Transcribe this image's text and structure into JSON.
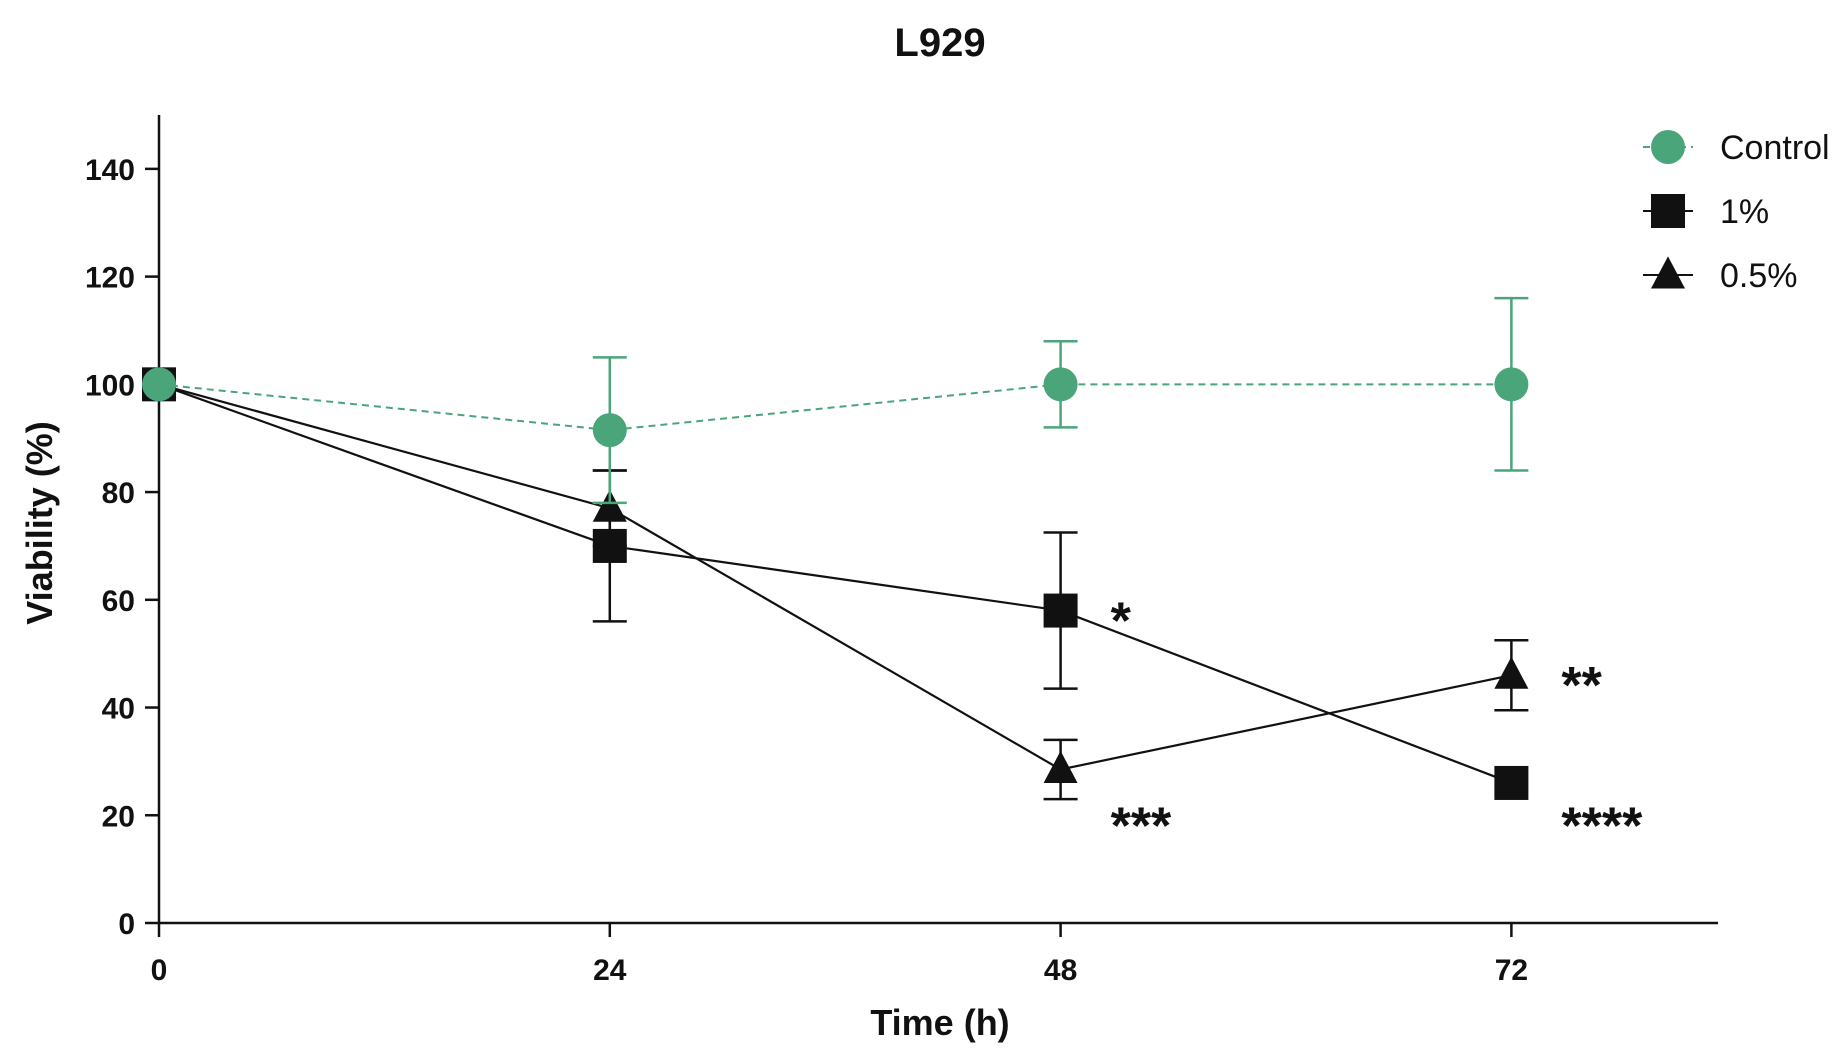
{
  "chart_data": {
    "type": "line",
    "title": "L929",
    "xlabel": "Time (h)",
    "ylabel": "Viability (%)",
    "xlim": [
      0,
      83
    ],
    "ylim": [
      0,
      150
    ],
    "x_ticks": [
      0,
      24,
      48,
      72
    ],
    "y_ticks": [
      0,
      20,
      40,
      60,
      80,
      100,
      120,
      140
    ],
    "legend_position": "top-right",
    "grid": false,
    "series": [
      {
        "name": "Control",
        "marker": "circle",
        "line_style": "dashed",
        "color": "#4aa57a",
        "x": [
          0,
          24,
          48,
          72
        ],
        "y": [
          100,
          91.5,
          100,
          100
        ],
        "error": [
          0,
          13.5,
          8,
          16
        ]
      },
      {
        "name": "1%",
        "marker": "square",
        "line_style": "solid",
        "color": "#111111",
        "x": [
          0,
          24,
          48,
          72
        ],
        "y": [
          100,
          70,
          58,
          26
        ],
        "error": [
          0,
          14,
          14.5,
          0
        ]
      },
      {
        "name": "0.5%",
        "marker": "triangle",
        "line_style": "solid",
        "color": "#111111",
        "x": [
          0,
          24,
          48,
          72
        ],
        "y": [
          100,
          77,
          28.5,
          46
        ],
        "error": [
          0,
          7,
          5.5,
          6.5
        ]
      }
    ],
    "annotations": [
      {
        "text": "*",
        "x": 48,
        "y": 58
      },
      {
        "text": "***",
        "x": 48,
        "y": 20
      },
      {
        "text": "**",
        "x": 72,
        "y": 46
      },
      {
        "text": "****",
        "x": 72,
        "y": 20
      }
    ]
  }
}
